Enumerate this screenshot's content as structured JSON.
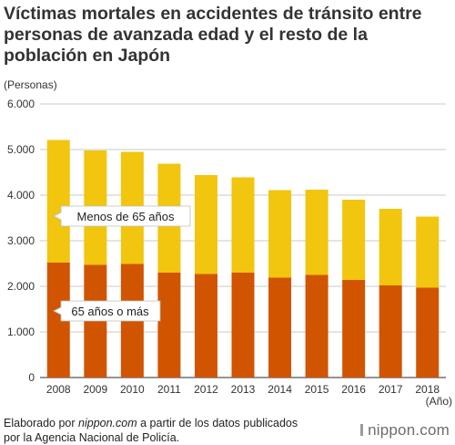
{
  "title": "Víctimas mortales en accidentes de tránsito entre personas de avanzada edad y el resto de la población en Japón",
  "unit_label": "(Personas)",
  "x_unit_label": "(Año)",
  "footer": {
    "prefix": "Elaborado por ",
    "source_name": "nippon.com",
    "suffix": " a partir de los datos publicados",
    "line2": "por la Agencia Nacional de Policía."
  },
  "logo_text": "nippon.com",
  "colors": {
    "under65": "#f2c50e",
    "over65": "#d15400",
    "grid": "#c8c8c8",
    "axis": "#555555"
  },
  "chart_data": {
    "type": "bar",
    "stacked": true,
    "categories": [
      "2008",
      "2009",
      "2010",
      "2011",
      "2012",
      "2013",
      "2014",
      "2015",
      "2016",
      "2017",
      "2018"
    ],
    "series": [
      {
        "name": "65 años o más",
        "values": [
          2520,
          2470,
          2490,
          2300,
          2270,
          2300,
          2190,
          2250,
          2140,
          2020,
          1970
        ]
      },
      {
        "name": "Menos de 65 años",
        "values": [
          2690,
          2510,
          2460,
          2390,
          2170,
          2090,
          1920,
          1870,
          1760,
          1680,
          1560
        ]
      }
    ],
    "yticks": [
      "0",
      "1.000",
      "2.000",
      "3.000",
      "4.000",
      "5.000",
      "6.000"
    ],
    "ylim": [
      0,
      6000
    ],
    "grid": true,
    "legend": "callout labels inside bars"
  }
}
